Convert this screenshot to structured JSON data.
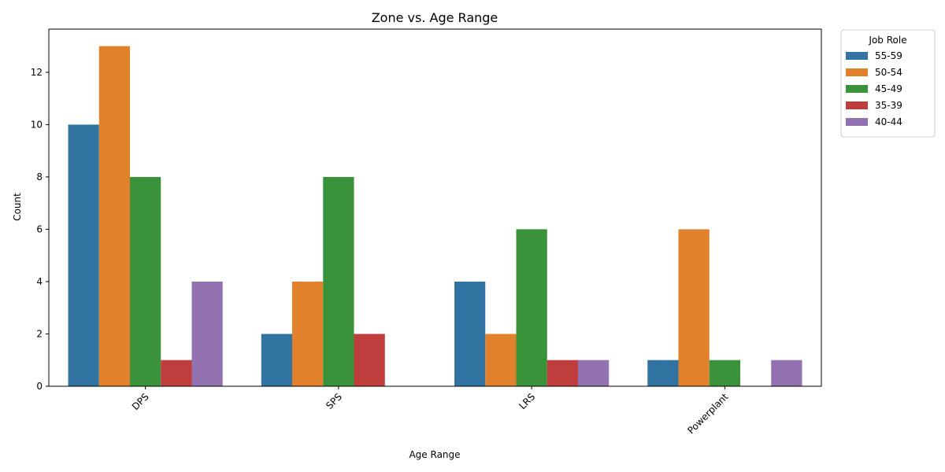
{
  "chart_data": {
    "type": "bar",
    "title": "Zone vs. Age Range",
    "xlabel": "Age Range",
    "ylabel": "Count",
    "categories": [
      "DPS",
      "SPS",
      "LRS",
      "Powerplant"
    ],
    "ylim": [
      0,
      13.65
    ],
    "yticks": [
      0,
      2,
      4,
      6,
      8,
      10,
      12
    ],
    "series": [
      {
        "name": "55-59",
        "color": "#3274a1",
        "values": [
          10,
          2,
          4,
          1
        ]
      },
      {
        "name": "50-54",
        "color": "#e1812c",
        "values": [
          13,
          4,
          2,
          6
        ]
      },
      {
        "name": "45-49",
        "color": "#3a923a",
        "values": [
          8,
          8,
          6,
          1
        ]
      },
      {
        "name": "35-39",
        "color": "#c03d3e",
        "values": [
          1,
          2,
          1,
          null
        ]
      },
      {
        "name": "40-44",
        "color": "#9372b2",
        "values": [
          4,
          null,
          1,
          1
        ]
      }
    ],
    "legend": {
      "title": "Job Role",
      "placement": "outside-top-right"
    },
    "grid": false
  }
}
